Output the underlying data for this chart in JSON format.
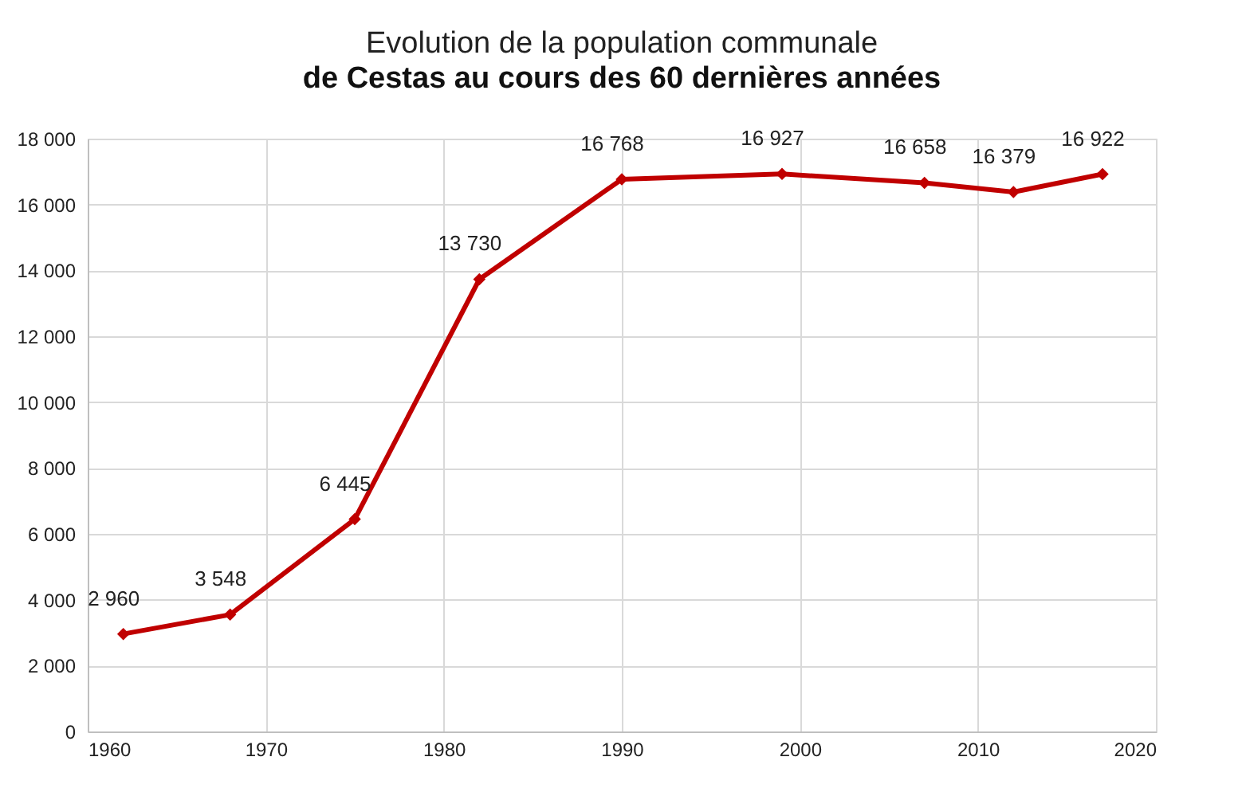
{
  "chart_data": {
    "type": "line",
    "title": "Evolution de la population communale",
    "subtitle": "de Cestas au cours des 60 dernières années",
    "x": [
      1962,
      1968,
      1975,
      1982,
      1990,
      1999,
      2007,
      2012,
      2017
    ],
    "series": [
      {
        "color": "#c00000",
        "values": [
          2960,
          3548,
          6445,
          13730,
          16768,
          16927,
          16658,
          16379,
          16922
        ],
        "value_labels": [
          "2 960",
          "3 548",
          "6 445",
          "13 730",
          "16 768",
          "16 927",
          "16 658",
          "16 379",
          "16 922"
        ]
      }
    ],
    "xlim": [
      1960,
      2020
    ],
    "xticks": [
      1960,
      1970,
      1980,
      1990,
      2000,
      2010,
      2020
    ],
    "ylim": [
      0,
      18000
    ],
    "yticks": [
      0,
      {
        "value": 2000,
        "label": "2 000"
      },
      {
        "value": 4000,
        "label": "4 000"
      },
      {
        "value": 6000,
        "label": "6 000"
      },
      {
        "value": 8000,
        "label": "8 000"
      },
      {
        "value": 10000,
        "label": "10 000"
      },
      {
        "value": 12000,
        "label": "12 000"
      },
      {
        "value": 14000,
        "label": "14 000"
      },
      {
        "value": 16000,
        "label": "16 000"
      },
      {
        "value": 18000,
        "label": "18 000"
      }
    ],
    "grid": true,
    "marker": "diamond",
    "line_style": "solid"
  }
}
